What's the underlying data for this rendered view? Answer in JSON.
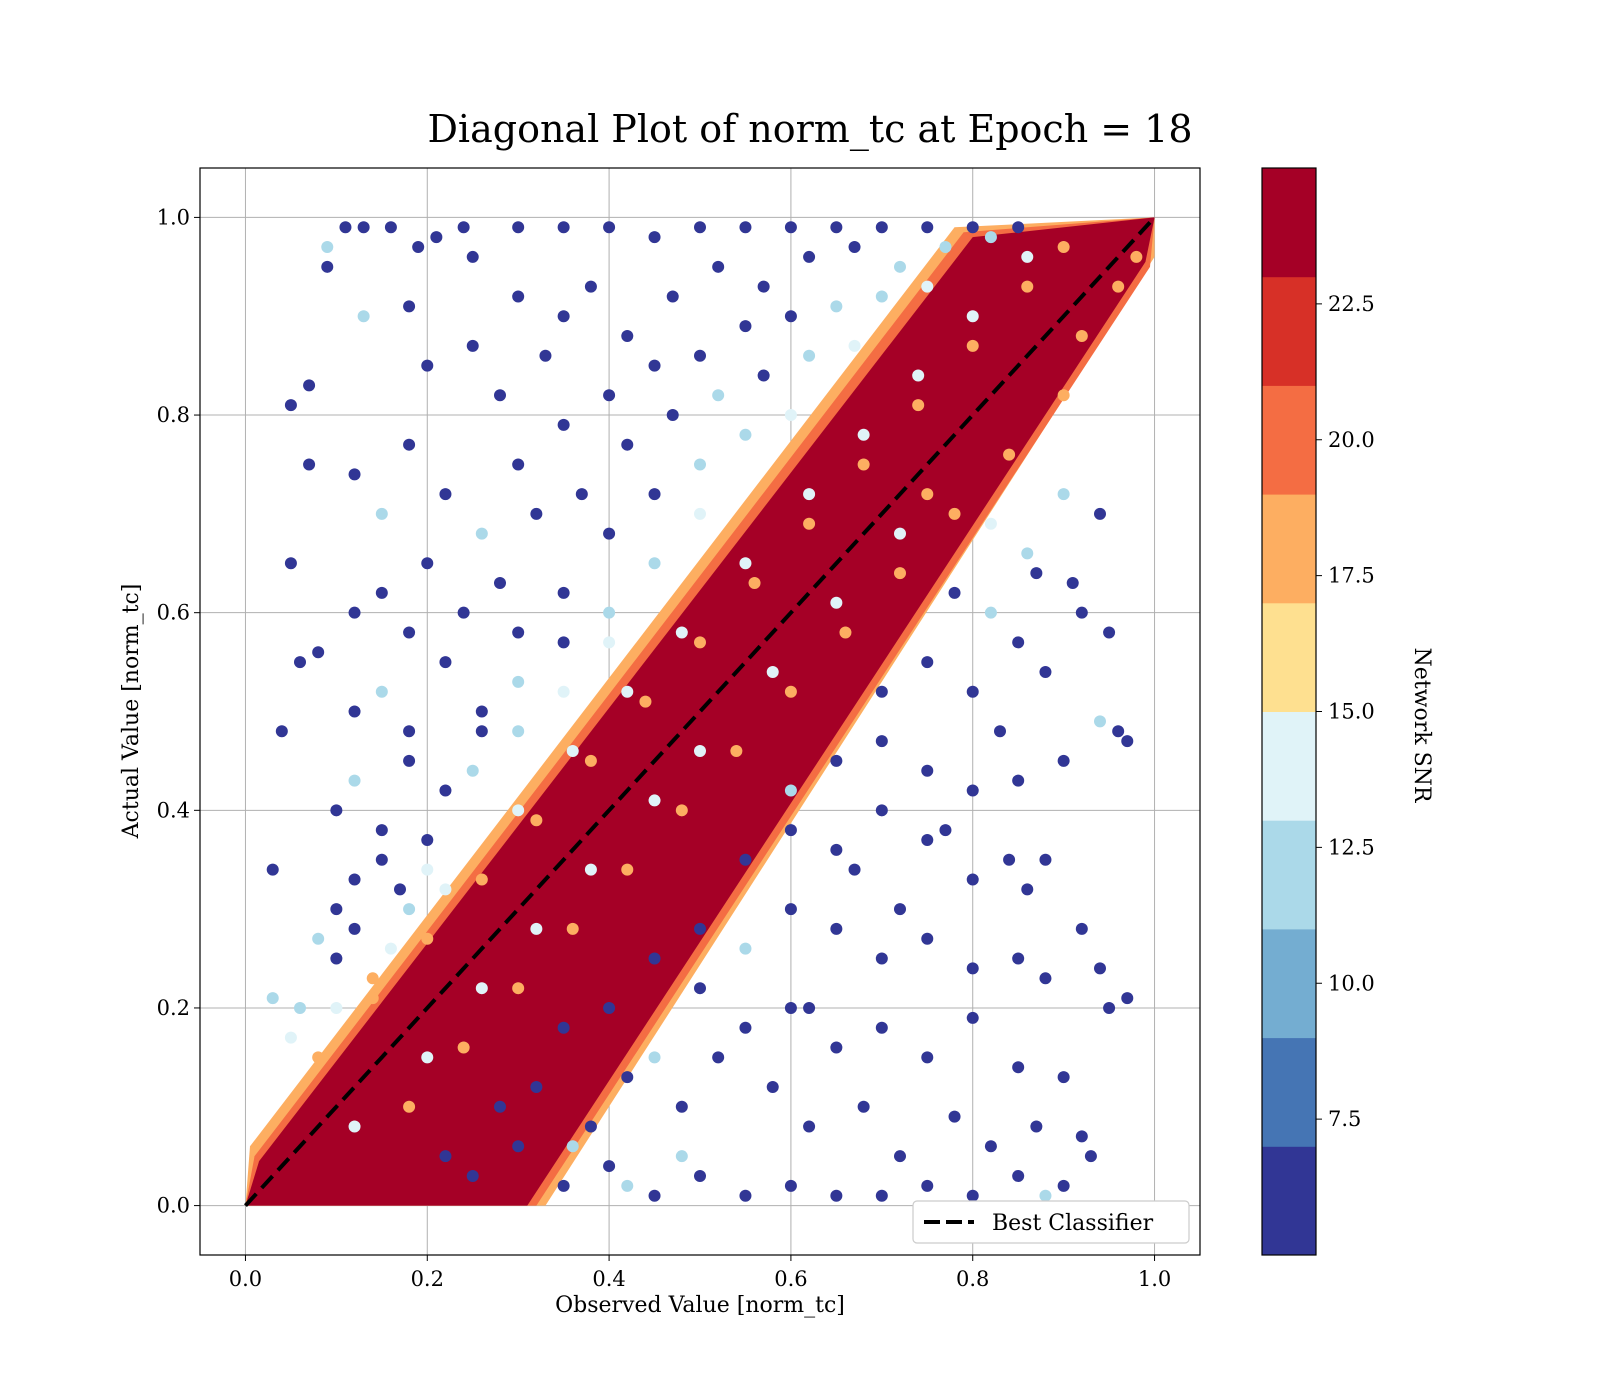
{
  "chart_data": {
    "type": "scatter",
    "title": "Diagonal Plot of norm_tc at Epoch = 18",
    "xlabel": "Observed Value [norm_tc]",
    "ylabel": "Actual Value [norm_tc]",
    "xlim": [
      -0.05,
      1.05
    ],
    "ylim": [
      -0.05,
      1.05
    ],
    "xticks": [
      0.0,
      0.2,
      0.4,
      0.6,
      0.8,
      1.0
    ],
    "yticks": [
      0.0,
      0.2,
      0.4,
      0.6,
      0.8,
      1.0
    ],
    "xtick_labels": [
      "0.0",
      "0.2",
      "0.4",
      "0.6",
      "0.8",
      "1.0"
    ],
    "ytick_labels": [
      "0.0",
      "0.2",
      "0.4",
      "0.6",
      "0.8",
      "1.0"
    ],
    "grid": true,
    "legend": {
      "placement": "lower-right",
      "entries": [
        {
          "label": "Best Classifier",
          "style": "black dashed line"
        }
      ]
    },
    "reference_line": {
      "name": "Best Classifier",
      "x": [
        0,
        1
      ],
      "y": [
        0,
        1
      ],
      "color": "#000000",
      "dash": true
    },
    "colorbar": {
      "label": "Network SNR",
      "range": [
        5.0,
        25.0
      ],
      "ticks": [
        7.5,
        10.0,
        12.5,
        15.0,
        17.5,
        20.0,
        22.5
      ],
      "tick_labels": [
        "7.5",
        "10.0",
        "12.5",
        "15.0",
        "17.5",
        "20.0",
        "22.5"
      ],
      "colors": [
        "#313695",
        "#4575b4",
        "#74add1",
        "#abd9e9",
        "#e0f3f8",
        "#fee090",
        "#fdae61",
        "#f46d43",
        "#d73027",
        "#a50026"
      ]
    },
    "points": [
      [
        0.11,
        0.99,
        6
      ],
      [
        0.09,
        0.95,
        6
      ],
      [
        0.05,
        0.81,
        6
      ],
      [
        0.07,
        0.83,
        6
      ],
      [
        0.07,
        0.75,
        6
      ],
      [
        0.05,
        0.65,
        6
      ],
      [
        0.06,
        0.55,
        6
      ],
      [
        0.08,
        0.56,
        6
      ],
      [
        0.04,
        0.48,
        6
      ],
      [
        0.03,
        0.34,
        6
      ],
      [
        0.13,
        0.99,
        6
      ],
      [
        0.16,
        0.99,
        6
      ],
      [
        0.19,
        0.97,
        6
      ],
      [
        0.21,
        0.98,
        6
      ],
      [
        0.24,
        0.99,
        6
      ],
      [
        0.13,
        0.9,
        11
      ],
      [
        0.18,
        0.91,
        6
      ],
      [
        0.25,
        0.96,
        6
      ],
      [
        0.3,
        0.99,
        6
      ],
      [
        0.35,
        0.99,
        6
      ],
      [
        0.4,
        0.99,
        6
      ],
      [
        0.45,
        0.98,
        6
      ],
      [
        0.5,
        0.99,
        6
      ],
      [
        0.55,
        0.99,
        6
      ],
      [
        0.6,
        0.99,
        6
      ],
      [
        0.65,
        0.99,
        6
      ],
      [
        0.7,
        0.99,
        6
      ],
      [
        0.75,
        0.99,
        6
      ],
      [
        0.8,
        0.99,
        6
      ],
      [
        0.85,
        0.99,
        6
      ],
      [
        0.2,
        0.85,
        6
      ],
      [
        0.25,
        0.87,
        6
      ],
      [
        0.3,
        0.92,
        6
      ],
      [
        0.35,
        0.9,
        6
      ],
      [
        0.28,
        0.82,
        6
      ],
      [
        0.33,
        0.86,
        6
      ],
      [
        0.38,
        0.93,
        6
      ],
      [
        0.42,
        0.88,
        6
      ],
      [
        0.47,
        0.92,
        6
      ],
      [
        0.52,
        0.95,
        6
      ],
      [
        0.57,
        0.93,
        6
      ],
      [
        0.62,
        0.96,
        6
      ],
      [
        0.67,
        0.97,
        6
      ],
      [
        0.72,
        0.95,
        11
      ],
      [
        0.77,
        0.97,
        11
      ],
      [
        0.82,
        0.98,
        11
      ],
      [
        0.12,
        0.74,
        6
      ],
      [
        0.15,
        0.7,
        11
      ],
      [
        0.18,
        0.77,
        6
      ],
      [
        0.22,
        0.72,
        6
      ],
      [
        0.26,
        0.68,
        11
      ],
      [
        0.3,
        0.75,
        6
      ],
      [
        0.35,
        0.79,
        6
      ],
      [
        0.4,
        0.82,
        6
      ],
      [
        0.45,
        0.85,
        6
      ],
      [
        0.5,
        0.86,
        6
      ],
      [
        0.55,
        0.89,
        6
      ],
      [
        0.6,
        0.9,
        6
      ],
      [
        0.65,
        0.91,
        11
      ],
      [
        0.7,
        0.92,
        11
      ],
      [
        0.75,
        0.93,
        14
      ],
      [
        0.12,
        0.6,
        6
      ],
      [
        0.15,
        0.62,
        6
      ],
      [
        0.18,
        0.58,
        6
      ],
      [
        0.2,
        0.65,
        6
      ],
      [
        0.24,
        0.6,
        6
      ],
      [
        0.28,
        0.63,
        6
      ],
      [
        0.32,
        0.7,
        6
      ],
      [
        0.37,
        0.72,
        6
      ],
      [
        0.42,
        0.77,
        6
      ],
      [
        0.47,
        0.8,
        6
      ],
      [
        0.52,
        0.82,
        11
      ],
      [
        0.57,
        0.84,
        6
      ],
      [
        0.62,
        0.86,
        11
      ],
      [
        0.67,
        0.87,
        14
      ],
      [
        0.12,
        0.5,
        6
      ],
      [
        0.15,
        0.52,
        11
      ],
      [
        0.18,
        0.48,
        6
      ],
      [
        0.22,
        0.55,
        6
      ],
      [
        0.26,
        0.5,
        6
      ],
      [
        0.3,
        0.58,
        6
      ],
      [
        0.35,
        0.62,
        6
      ],
      [
        0.4,
        0.68,
        6
      ],
      [
        0.45,
        0.72,
        6
      ],
      [
        0.5,
        0.75,
        11
      ],
      [
        0.55,
        0.78,
        11
      ],
      [
        0.6,
        0.8,
        14
      ],
      [
        0.1,
        0.4,
        6
      ],
      [
        0.12,
        0.43,
        11
      ],
      [
        0.15,
        0.38,
        6
      ],
      [
        0.18,
        0.45,
        6
      ],
      [
        0.22,
        0.42,
        6
      ],
      [
        0.26,
        0.48,
        6
      ],
      [
        0.3,
        0.53,
        11
      ],
      [
        0.35,
        0.57,
        6
      ],
      [
        0.4,
        0.6,
        11
      ],
      [
        0.45,
        0.65,
        11
      ],
      [
        0.5,
        0.7,
        14
      ],
      [
        0.1,
        0.3,
        6
      ],
      [
        0.12,
        0.33,
        6
      ],
      [
        0.15,
        0.35,
        6
      ],
      [
        0.17,
        0.32,
        6
      ],
      [
        0.2,
        0.37,
        6
      ],
      [
        0.25,
        0.44,
        11
      ],
      [
        0.3,
        0.48,
        11
      ],
      [
        0.35,
        0.52,
        14
      ],
      [
        0.4,
        0.57,
        14
      ],
      [
        0.08,
        0.27,
        11
      ],
      [
        0.1,
        0.25,
        6
      ],
      [
        0.12,
        0.28,
        6
      ],
      [
        0.06,
        0.2,
        11
      ],
      [
        0.14,
        0.23,
        18
      ],
      [
        0.18,
        0.3,
        11
      ],
      [
        0.2,
        0.34,
        14
      ],
      [
        0.03,
        0.21,
        11
      ],
      [
        0.05,
        0.17,
        14
      ],
      [
        0.09,
        0.97,
        11
      ],
      [
        0.22,
        0.05,
        6
      ],
      [
        0.25,
        0.03,
        6
      ],
      [
        0.3,
        0.06,
        6
      ],
      [
        0.35,
        0.02,
        6
      ],
      [
        0.4,
        0.04,
        6
      ],
      [
        0.45,
        0.01,
        6
      ],
      [
        0.5,
        0.03,
        6
      ],
      [
        0.55,
        0.01,
        6
      ],
      [
        0.6,
        0.02,
        6
      ],
      [
        0.65,
        0.01,
        6
      ],
      [
        0.7,
        0.01,
        6
      ],
      [
        0.75,
        0.02,
        6
      ],
      [
        0.8,
        0.01,
        6
      ],
      [
        0.85,
        0.03,
        6
      ],
      [
        0.88,
        0.01,
        11
      ],
      [
        0.9,
        0.02,
        6
      ],
      [
        0.28,
        0.1,
        6
      ],
      [
        0.32,
        0.12,
        6
      ],
      [
        0.38,
        0.08,
        6
      ],
      [
        0.42,
        0.13,
        6
      ],
      [
        0.48,
        0.1,
        6
      ],
      [
        0.52,
        0.15,
        6
      ],
      [
        0.58,
        0.12,
        6
      ],
      [
        0.62,
        0.08,
        6
      ],
      [
        0.68,
        0.1,
        6
      ],
      [
        0.72,
        0.05,
        6
      ],
      [
        0.78,
        0.09,
        6
      ],
      [
        0.82,
        0.06,
        6
      ],
      [
        0.87,
        0.08,
        6
      ],
      [
        0.92,
        0.07,
        6
      ],
      [
        0.35,
        0.18,
        6
      ],
      [
        0.4,
        0.2,
        6
      ],
      [
        0.45,
        0.15,
        11
      ],
      [
        0.5,
        0.22,
        6
      ],
      [
        0.55,
        0.18,
        6
      ],
      [
        0.6,
        0.2,
        6
      ],
      [
        0.65,
        0.16,
        6
      ],
      [
        0.7,
        0.18,
        6
      ],
      [
        0.75,
        0.15,
        6
      ],
      [
        0.8,
        0.19,
        6
      ],
      [
        0.85,
        0.14,
        6
      ],
      [
        0.9,
        0.13,
        6
      ],
      [
        0.95,
        0.2,
        6
      ],
      [
        0.97,
        0.21,
        6
      ],
      [
        0.45,
        0.25,
        6
      ],
      [
        0.5,
        0.28,
        6
      ],
      [
        0.55,
        0.26,
        11
      ],
      [
        0.6,
        0.3,
        6
      ],
      [
        0.65,
        0.28,
        6
      ],
      [
        0.7,
        0.25,
        6
      ],
      [
        0.75,
        0.27,
        6
      ],
      [
        0.8,
        0.24,
        6
      ],
      [
        0.85,
        0.25,
        6
      ],
      [
        0.88,
        0.23,
        6
      ],
      [
        0.92,
        0.28,
        6
      ],
      [
        0.94,
        0.24,
        6
      ],
      [
        0.55,
        0.35,
        6
      ],
      [
        0.6,
        0.38,
        6
      ],
      [
        0.65,
        0.36,
        6
      ],
      [
        0.7,
        0.4,
        6
      ],
      [
        0.75,
        0.37,
        6
      ],
      [
        0.8,
        0.33,
        6
      ],
      [
        0.84,
        0.35,
        6
      ],
      [
        0.86,
        0.32,
        6
      ],
      [
        0.88,
        0.35,
        6
      ],
      [
        0.6,
        0.42,
        11
      ],
      [
        0.65,
        0.45,
        6
      ],
      [
        0.7,
        0.47,
        6
      ],
      [
        0.75,
        0.44,
        6
      ],
      [
        0.8,
        0.42,
        6
      ],
      [
        0.85,
        0.43,
        6
      ],
      [
        0.9,
        0.45,
        6
      ],
      [
        0.94,
        0.49,
        11
      ],
      [
        0.96,
        0.48,
        6
      ],
      [
        0.97,
        0.47,
        6
      ],
      [
        0.7,
        0.52,
        6
      ],
      [
        0.75,
        0.55,
        6
      ],
      [
        0.8,
        0.52,
        6
      ],
      [
        0.85,
        0.57,
        6
      ],
      [
        0.88,
        0.54,
        6
      ],
      [
        0.92,
        0.6,
        6
      ],
      [
        0.95,
        0.58,
        6
      ],
      [
        0.78,
        0.62,
        6
      ],
      [
        0.82,
        0.6,
        11
      ],
      [
        0.87,
        0.64,
        6
      ],
      [
        0.91,
        0.63,
        6
      ],
      [
        0.94,
        0.7,
        6
      ],
      [
        0.82,
        0.69,
        14
      ],
      [
        0.86,
        0.66,
        11
      ],
      [
        0.9,
        0.72,
        11
      ],
      [
        0.67,
        0.34,
        6
      ],
      [
        0.72,
        0.3,
        6
      ],
      [
        0.77,
        0.38,
        6
      ],
      [
        0.83,
        0.48,
        6
      ],
      [
        0.62,
        0.2,
        6
      ],
      [
        0.48,
        0.05,
        11
      ],
      [
        0.36,
        0.06,
        11
      ],
      [
        0.42,
        0.02,
        11
      ],
      [
        0.93,
        0.05,
        6
      ],
      [
        0.75,
        0.72,
        18
      ],
      [
        0.72,
        0.68,
        14
      ],
      [
        0.65,
        0.61,
        14
      ],
      [
        0.58,
        0.54,
        14
      ],
      [
        0.5,
        0.46,
        14
      ],
      [
        0.45,
        0.41,
        14
      ],
      [
        0.38,
        0.34,
        14
      ],
      [
        0.32,
        0.28,
        14
      ],
      [
        0.26,
        0.22,
        14
      ],
      [
        0.2,
        0.15,
        14
      ],
      [
        0.12,
        0.08,
        14
      ],
      [
        0.3,
        0.4,
        14
      ],
      [
        0.36,
        0.46,
        14
      ],
      [
        0.42,
        0.52,
        14
      ],
      [
        0.48,
        0.58,
        14
      ],
      [
        0.55,
        0.65,
        14
      ],
      [
        0.62,
        0.72,
        14
      ],
      [
        0.68,
        0.78,
        14
      ],
      [
        0.74,
        0.84,
        14
      ],
      [
        0.8,
        0.9,
        14
      ],
      [
        0.86,
        0.96,
        14
      ],
      [
        0.22,
        0.32,
        14
      ],
      [
        0.16,
        0.26,
        14
      ],
      [
        0.1,
        0.2,
        14
      ],
      [
        0.9,
        0.82,
        18
      ],
      [
        0.84,
        0.76,
        18
      ],
      [
        0.78,
        0.7,
        18
      ],
      [
        0.72,
        0.64,
        18
      ],
      [
        0.66,
        0.58,
        18
      ],
      [
        0.6,
        0.52,
        18
      ],
      [
        0.54,
        0.46,
        18
      ],
      [
        0.48,
        0.4,
        18
      ],
      [
        0.42,
        0.34,
        18
      ],
      [
        0.36,
        0.28,
        18
      ],
      [
        0.3,
        0.22,
        18
      ],
      [
        0.24,
        0.16,
        18
      ],
      [
        0.18,
        0.1,
        18
      ],
      [
        0.92,
        0.88,
        18
      ],
      [
        0.96,
        0.93,
        18
      ],
      [
        0.98,
        0.96,
        18
      ],
      [
        0.08,
        0.15,
        18
      ],
      [
        0.14,
        0.21,
        18
      ],
      [
        0.2,
        0.27,
        18
      ],
      [
        0.26,
        0.33,
        18
      ],
      [
        0.32,
        0.39,
        18
      ],
      [
        0.38,
        0.45,
        18
      ],
      [
        0.44,
        0.51,
        18
      ],
      [
        0.5,
        0.57,
        18
      ],
      [
        0.56,
        0.63,
        18
      ],
      [
        0.62,
        0.69,
        18
      ],
      [
        0.68,
        0.75,
        18
      ],
      [
        0.74,
        0.81,
        18
      ],
      [
        0.8,
        0.87,
        18
      ],
      [
        0.86,
        0.93,
        18
      ],
      [
        0.9,
        0.97,
        18
      ]
    ]
  }
}
